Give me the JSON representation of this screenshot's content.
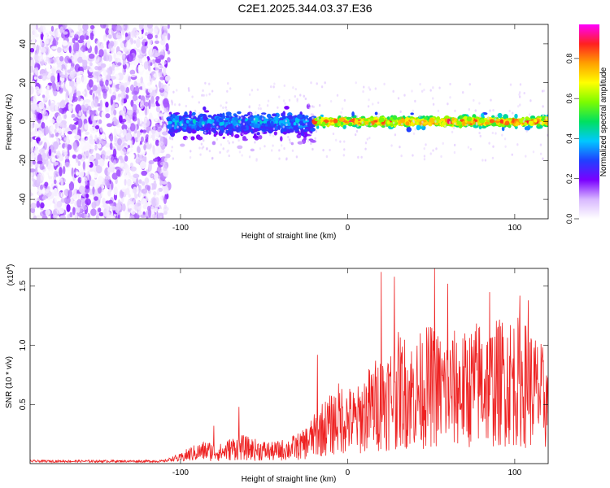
{
  "figure": {
    "title": "C2E1.2025.344.03.37.E36"
  },
  "colorbar": {
    "label": "Normalized spectral amplitude",
    "ticks": [
      "0.0",
      "0.2",
      "0.4",
      "0.6",
      "0.8"
    ],
    "range": [
      0,
      0.97
    ],
    "colors": [
      "#ffffff",
      "#d8b8ff",
      "#7a00ff",
      "#2040ff",
      "#00c8ff",
      "#00e060",
      "#7cfc00",
      "#ffff00",
      "#ffa000",
      "#ff2020",
      "#ff00ff"
    ]
  },
  "chart_data": [
    {
      "type": "heatmap",
      "title": "C2E1.2025.344.03.37.E36",
      "xlabel": "Height of straight line (km)",
      "ylabel": "Frequency (Hz)",
      "xlim": [
        -190,
        120
      ],
      "ylim": [
        -50,
        50
      ],
      "xticks": [
        -100,
        0,
        100
      ],
      "xtick_labels": [
        "-100",
        "0",
        "100"
      ],
      "yticks": [
        -40,
        -20,
        0,
        20,
        40
      ],
      "ytick_labels": [
        "-40",
        "-20",
        "0",
        "20",
        "40"
      ],
      "colorbar_label": "Normalized spectral amplitude",
      "colorbar_range": [
        0,
        0.97
      ],
      "regions": [
        {
          "x_range": [
            -190,
            -107
          ],
          "freq_range": [
            -50,
            50
          ],
          "amplitude_range": [
            0.0,
            0.15
          ],
          "pattern": "scattered noise"
        },
        {
          "x_range": [
            -107,
            -20
          ],
          "center_freq": 0,
          "freq_spread": [
            -12,
            8
          ],
          "amplitude_range": [
            0.1,
            0.45
          ],
          "pattern": "band"
        },
        {
          "x_range": [
            -20,
            120
          ],
          "center_freq": 0,
          "freq_spread": [
            -4,
            4
          ],
          "amplitude_range": [
            0.3,
            0.97
          ],
          "pattern": "narrow band, red peaks near 0 Hz"
        }
      ]
    },
    {
      "type": "line",
      "xlabel": "Height of straight line (km)",
      "ylabel": "SNR (10 * v/v)",
      "scale_label": "(x10",
      "scale_exponent": "4",
      "xlim": [
        -190,
        120
      ],
      "ylim": [
        0,
        1.65
      ],
      "xticks": [
        -100,
        0,
        100
      ],
      "xtick_labels": [
        "-100",
        "0",
        "100"
      ],
      "yticks": [
        0.5,
        1.0,
        1.5
      ],
      "ytick_labels": [
        "0.5",
        "1.0",
        "1.5"
      ],
      "color": "#ee2222",
      "series": [
        {
          "name": "SNR",
          "x": [
            -190,
            -170,
            -150,
            -130,
            -110,
            -100,
            -95,
            -85,
            -75,
            -70,
            -65,
            -55,
            -45,
            -35,
            -27,
            -20,
            -15,
            -10,
            -5,
            0,
            5,
            10,
            15,
            20,
            25,
            30,
            35,
            40,
            45,
            50,
            55,
            60,
            65,
            70,
            75,
            80,
            85,
            90,
            95,
            100,
            105,
            110,
            115,
            120
          ],
          "y": [
            0.02,
            0.02,
            0.02,
            0.02,
            0.02,
            0.06,
            0.1,
            0.14,
            0.12,
            0.16,
            0.18,
            0.15,
            0.13,
            0.16,
            0.2,
            0.3,
            0.38,
            0.42,
            0.5,
            0.48,
            0.45,
            0.55,
            0.62,
            0.68,
            0.72,
            0.8,
            0.78,
            0.75,
            0.82,
            0.85,
            0.8,
            0.78,
            0.82,
            0.8,
            0.85,
            0.9,
            0.85,
            0.88,
            0.92,
            0.9,
            0.88,
            0.82,
            0.75,
            0.65
          ],
          "peaks": [
            {
              "x": -80,
              "y": 0.32
            },
            {
              "x": -65,
              "y": 0.48
            },
            {
              "x": -18,
              "y": 0.92
            },
            {
              "x": 20,
              "y": 1.62
            },
            {
              "x": 28,
              "y": 1.58
            },
            {
              "x": 52,
              "y": 1.65
            },
            {
              "x": 60,
              "y": 1.52
            },
            {
              "x": 85,
              "y": 1.45
            },
            {
              "x": 103,
              "y": 1.42
            },
            {
              "x": 108,
              "y": 1.38
            }
          ]
        }
      ]
    }
  ]
}
